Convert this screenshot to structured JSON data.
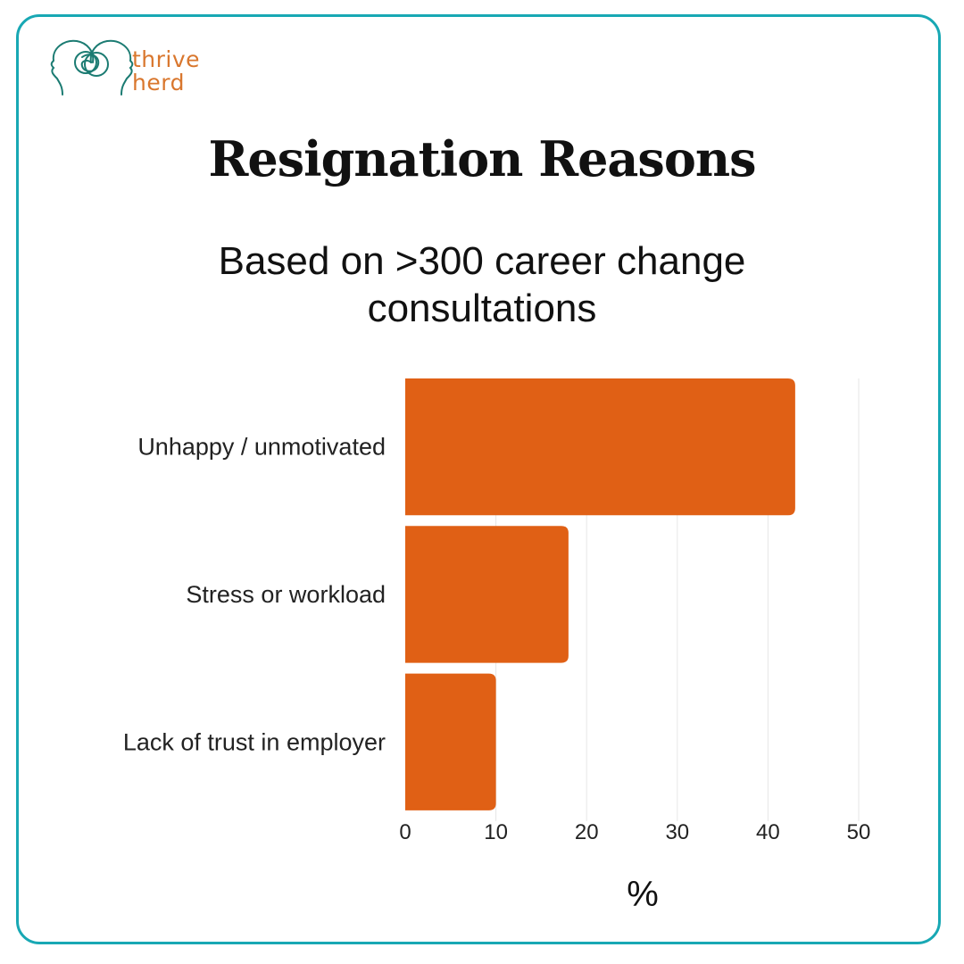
{
  "brand": {
    "line1": "thrive",
    "line2": "herd",
    "logo_icon": "two-faces-heads-icon",
    "logo_color": "#1b7b72",
    "text_color": "#d9772e"
  },
  "frame": {
    "border_color": "#18a8b4"
  },
  "chart_data": {
    "type": "bar",
    "orientation": "horizontal",
    "title": "Resignation Reasons",
    "subtitle": "Based on >300 career change consultations",
    "categories": [
      "Unhappy / unmotivated",
      "Stress or workload",
      "Lack of trust in employer"
    ],
    "values": [
      43,
      18,
      10
    ],
    "xlabel": "%",
    "ylabel": "",
    "xlim": [
      0,
      50
    ],
    "xticks": [
      0,
      10,
      20,
      30,
      40,
      50
    ],
    "grid": true,
    "bar_color": "#e06015"
  }
}
